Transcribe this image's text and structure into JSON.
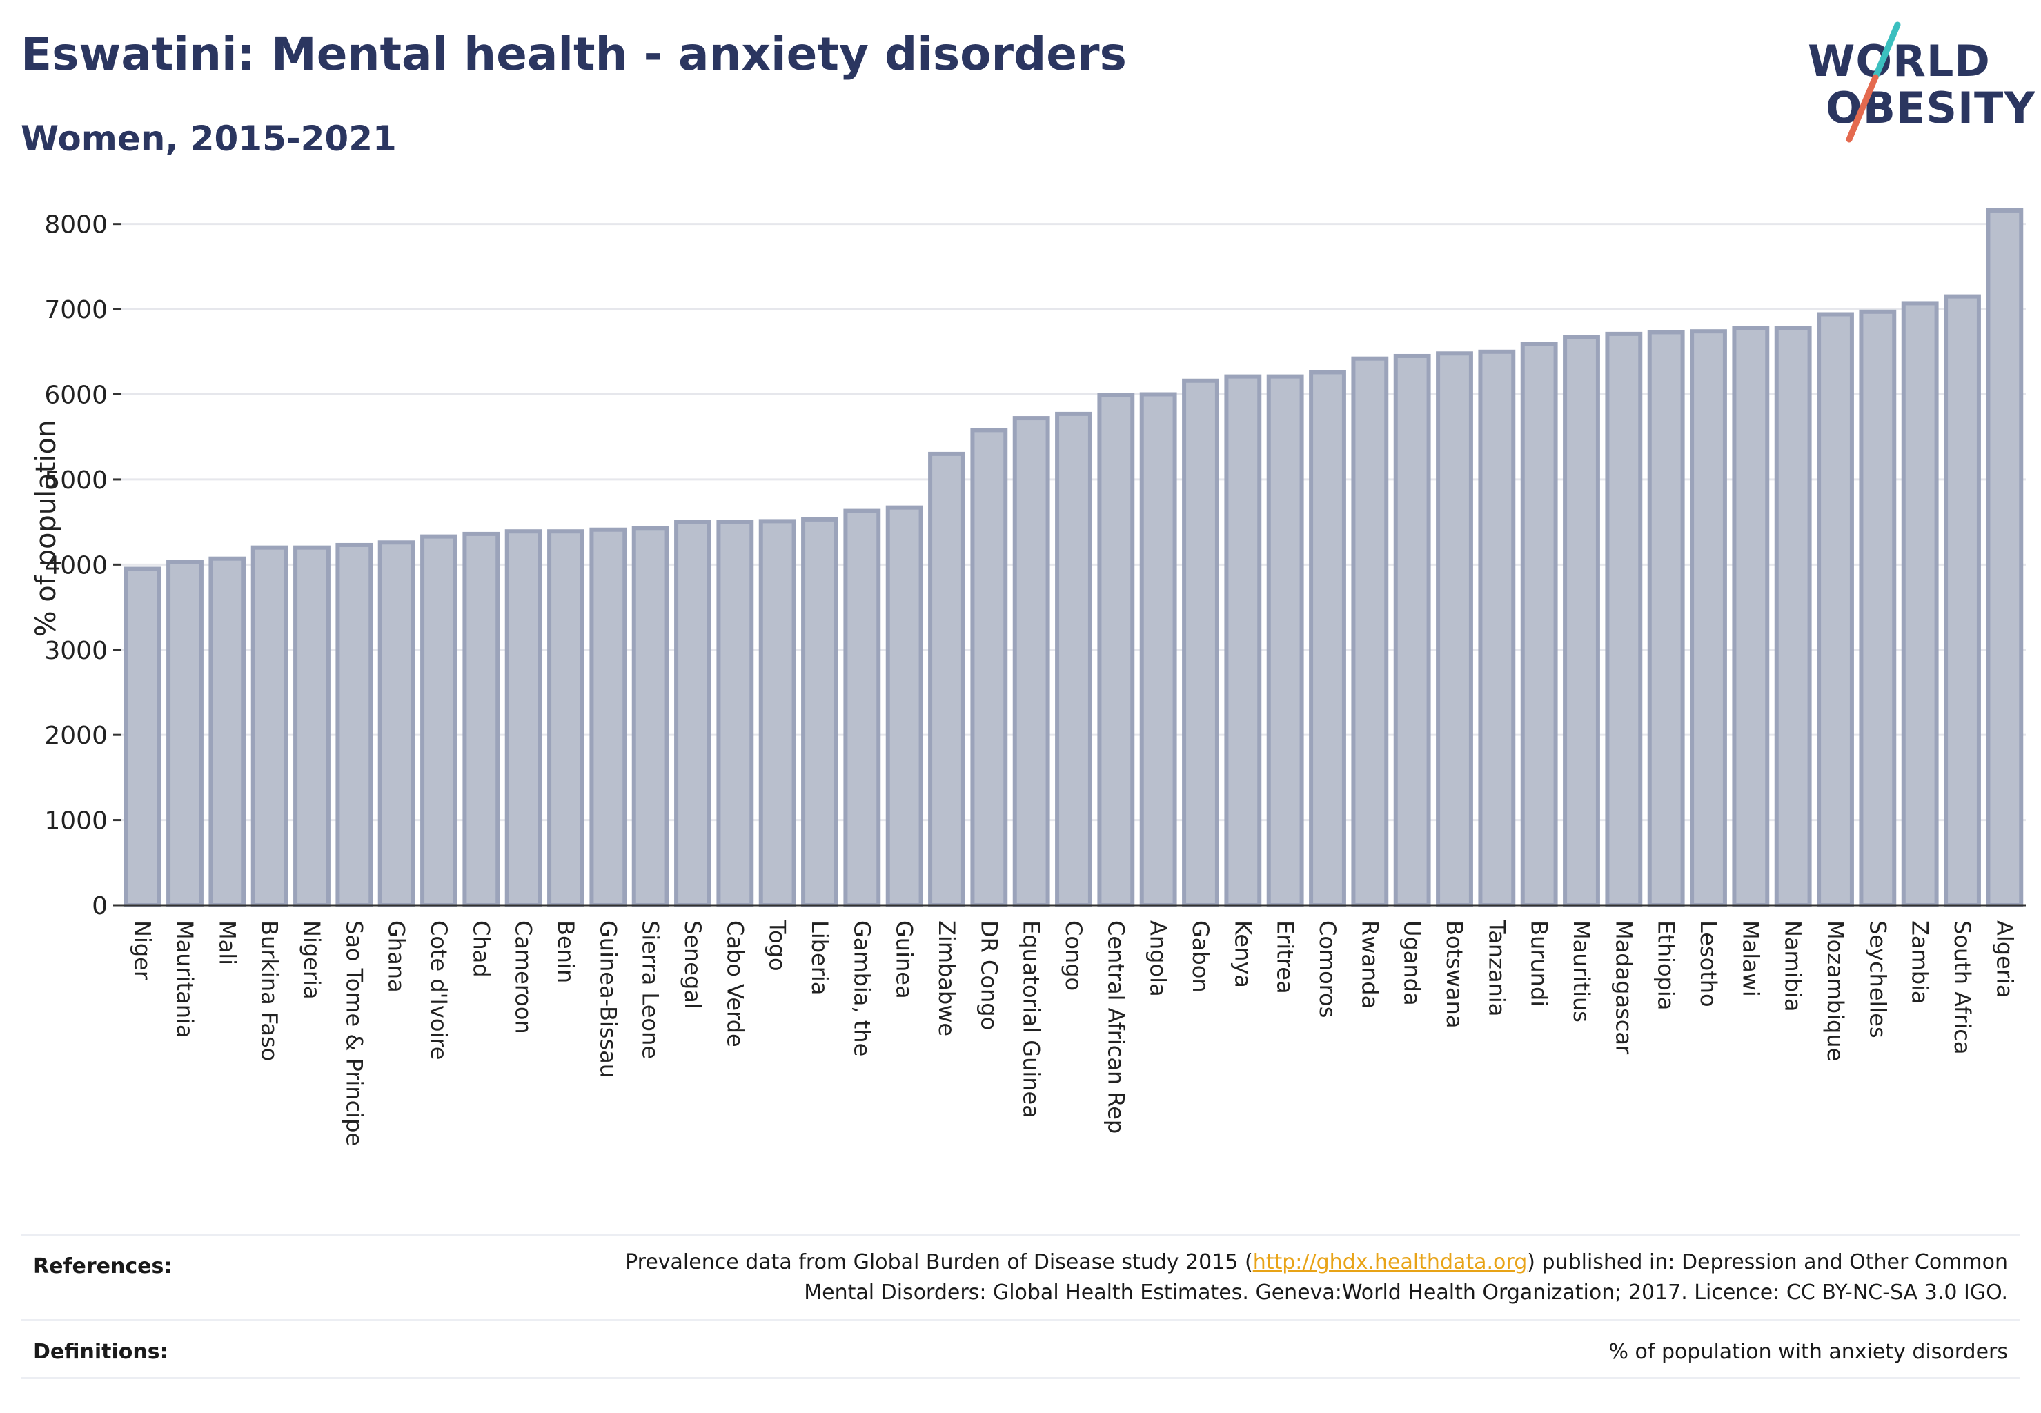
{
  "header": {
    "title": "Eswatini: Mental health - anxiety disorders",
    "subtitle": "Women, 2015-2021"
  },
  "logo": {
    "line1": "WORLD",
    "line2": "OBESITY",
    "colors": {
      "text": "#2b3660",
      "slash_top": "#3bbfbf",
      "slash_bottom": "#e46a4f"
    }
  },
  "chart_data": {
    "type": "bar",
    "title": "",
    "xlabel": "",
    "ylabel": "% of population",
    "ylim": [
      0,
      8200
    ],
    "yticks": [
      0,
      1000,
      2000,
      3000,
      4000,
      5000,
      6000,
      7000,
      8000
    ],
    "grid": true,
    "bar_color": "#b9bfcd",
    "bar_edge_color": "#9ba3ba",
    "categories": [
      "Niger",
      "Mauritania",
      "Mali",
      "Burkina Faso",
      "Nigeria",
      "Sao Tome & Principe",
      "Ghana",
      "Cote d'Ivoire",
      "Chad",
      "Cameroon",
      "Benin",
      "Guinea-Bissau",
      "Sierra Leone",
      "Senegal",
      "Cabo Verde",
      "Togo",
      "Liberia",
      "Gambia, the",
      "Guinea",
      "Zimbabwe",
      "DR Congo",
      "Equatorial Guinea",
      "Congo",
      "Central African Rep",
      "Angola",
      "Gabon",
      "Kenya",
      "Eritrea",
      "Comoros",
      "Rwanda",
      "Uganda",
      "Botswana",
      "Tanzania",
      "Burundi",
      "Mauritius",
      "Madagascar",
      "Ethiopia",
      "Lesotho",
      "Malawi",
      "Namibia",
      "Mozambique",
      "Seychelles",
      "Zambia",
      "South Africa",
      "Algeria"
    ],
    "values": [
      3950,
      4030,
      4070,
      4200,
      4200,
      4230,
      4260,
      4330,
      4360,
      4390,
      4390,
      4410,
      4430,
      4500,
      4500,
      4510,
      4530,
      4630,
      4670,
      5300,
      5580,
      5720,
      5770,
      5990,
      6000,
      6160,
      6210,
      6210,
      6260,
      6420,
      6450,
      6480,
      6500,
      6590,
      6670,
      6710,
      6730,
      6740,
      6780,
      6780,
      6940,
      6970,
      7070,
      7150,
      8160
    ]
  },
  "footer": {
    "references_label": "References:",
    "references_text_before": "Prevalence data from Global Burden of Disease study 2015 (",
    "references_link": "http://ghdx.healthdata.org",
    "references_text_after": ") published in: Depression and Other Common",
    "references_line2": "Mental Disorders: Global Health Estimates. Geneva:World Health Organization; 2017. Licence: CC BY-NC-SA 3.0 IGO.",
    "definitions_label": "Definitions:",
    "definitions_text": "% of population with anxiety disorders"
  }
}
